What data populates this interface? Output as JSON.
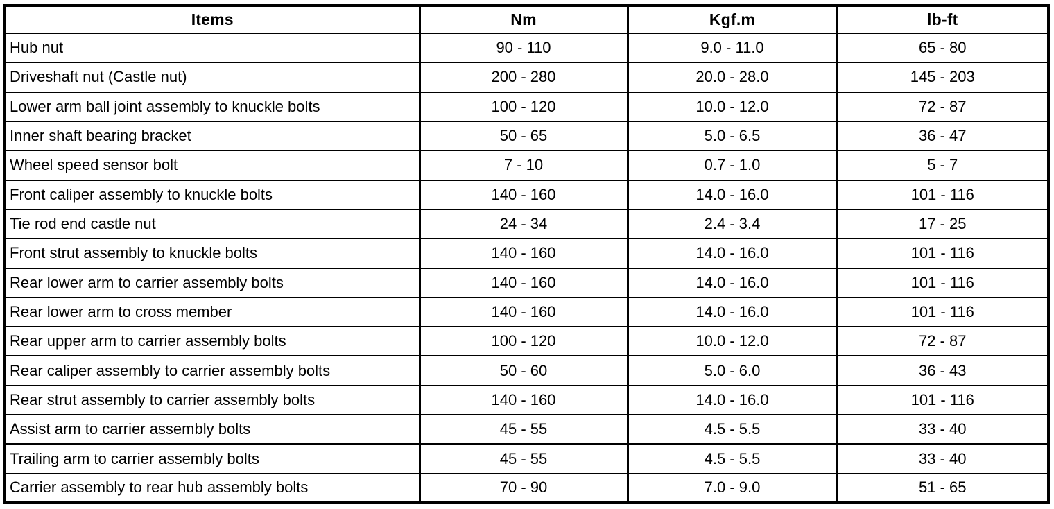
{
  "table": {
    "headers": {
      "items": "Items",
      "nm": "Nm",
      "kgfm": "Kgf.m",
      "lbft": "lb-ft"
    },
    "rows": [
      {
        "item": "Hub nut",
        "nm": "90 - 110",
        "kgfm": "9.0 - 11.0",
        "lbft": "65 - 80"
      },
      {
        "item": "Driveshaft nut (Castle nut)",
        "nm": "200 - 280",
        "kgfm": "20.0 - 28.0",
        "lbft": "145 - 203"
      },
      {
        "item": "Lower arm ball joint assembly to knuckle bolts",
        "nm": "100 - 120",
        "kgfm": "10.0 - 12.0",
        "lbft": "72 - 87"
      },
      {
        "item": "Inner shaft bearing bracket",
        "nm": "50 - 65",
        "kgfm": "5.0 - 6.5",
        "lbft": "36 - 47"
      },
      {
        "item": "Wheel speed sensor bolt",
        "nm": "7 - 10",
        "kgfm": "0.7 - 1.0",
        "lbft": "5 - 7"
      },
      {
        "item": "Front caliper assembly to knuckle bolts",
        "nm": "140 - 160",
        "kgfm": "14.0 - 16.0",
        "lbft": "101 - 116"
      },
      {
        "item": "Tie rod end castle nut",
        "nm": "24 - 34",
        "kgfm": "2.4 - 3.4",
        "lbft": "17 - 25"
      },
      {
        "item": "Front strut assembly to knuckle bolts",
        "nm": "140 - 160",
        "kgfm": "14.0 - 16.0",
        "lbft": "101 - 116"
      },
      {
        "item": "Rear lower arm to carrier assembly bolts",
        "nm": "140 - 160",
        "kgfm": "14.0 - 16.0",
        "lbft": "101 - 116"
      },
      {
        "item": "Rear lower arm to cross member",
        "nm": "140 - 160",
        "kgfm": "14.0 - 16.0",
        "lbft": "101 - 116"
      },
      {
        "item": "Rear upper arm to carrier assembly bolts",
        "nm": "100 - 120",
        "kgfm": "10.0 - 12.0",
        "lbft": "72 - 87"
      },
      {
        "item": "Rear caliper assembly to carrier assembly bolts",
        "nm": "50 - 60",
        "kgfm": "5.0 - 6.0",
        "lbft": "36 - 43"
      },
      {
        "item": "Rear strut assembly to carrier assembly bolts",
        "nm": "140 - 160",
        "kgfm": "14.0 - 16.0",
        "lbft": "101 - 116"
      },
      {
        "item": "Assist arm to carrier assembly bolts",
        "nm": "45 - 55",
        "kgfm": "4.5 - 5.5",
        "lbft": "33 - 40"
      },
      {
        "item": "Trailing arm to carrier assembly bolts",
        "nm": "45 - 55",
        "kgfm": "4.5 - 5.5",
        "lbft": "33 - 40"
      },
      {
        "item": "Carrier assembly to rear hub assembly bolts",
        "nm": "70 - 90",
        "kgfm": "7.0 - 9.0",
        "lbft": "51 - 65"
      }
    ],
    "border_color": "#000000",
    "background_color": "#ffffff",
    "text_color": "#000000"
  }
}
